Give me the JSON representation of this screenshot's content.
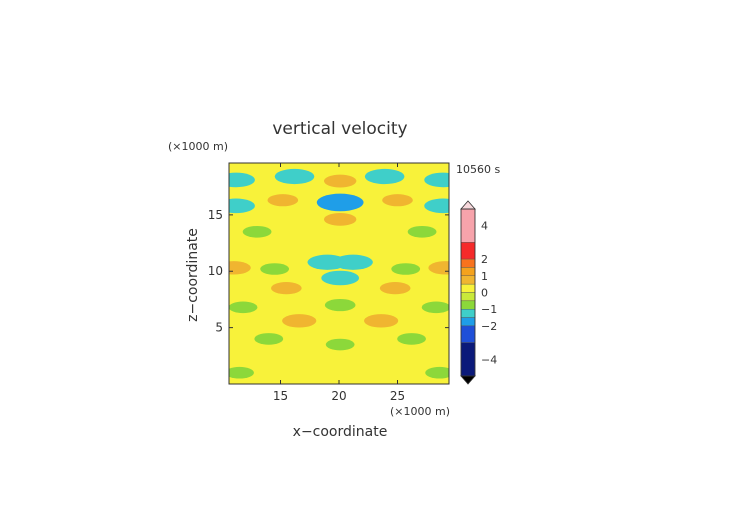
{
  "chart_data": {
    "type": "heatmap",
    "title": "vertical velocity",
    "time_label": "10560 s",
    "xlabel": "x−coordinate",
    "ylabel": "z−coordinate",
    "x_unit": "(×1000 m)",
    "y_unit": "(×1000 m)",
    "xlim": [
      10.6,
      29.4
    ],
    "ylim": [
      0,
      19.6
    ],
    "x_ticks": [
      15,
      20,
      25
    ],
    "y_ticks": [
      5,
      10,
      15
    ],
    "colorbar": {
      "ticks": [
        4,
        2,
        1,
        0,
        -1,
        -2,
        -4
      ],
      "tick_labels": [
        "4",
        "2",
        "1",
        "0",
        "−1",
        "−2",
        "−4"
      ],
      "levels": [
        {
          "from": 3,
          "to": 5,
          "color": "#f7a3ab"
        },
        {
          "from": 2,
          "to": 3,
          "color": "#f52a2a"
        },
        {
          "from": 1.5,
          "to": 2,
          "color": "#f8731e"
        },
        {
          "from": 1,
          "to": 1.5,
          "color": "#f4a21d"
        },
        {
          "from": 0.5,
          "to": 1,
          "color": "#f0b530"
        },
        {
          "from": 0,
          "to": 0.5,
          "color": "#f8f23a"
        },
        {
          "from": -0.5,
          "to": 0,
          "color": "#c9e93a"
        },
        {
          "from": -1,
          "to": -0.5,
          "color": "#8cd83a"
        },
        {
          "from": -1.5,
          "to": -1,
          "color": "#3fcfc9"
        },
        {
          "from": -2,
          "to": -1.5,
          "color": "#1f9ee8"
        },
        {
          "from": -3,
          "to": -2,
          "color": "#1f4fd8"
        },
        {
          "from": -5,
          "to": -3,
          "color": "#0b1a7a"
        }
      ],
      "over_color": "#f7d8dc",
      "under_color": "#000000"
    },
    "background_value": 0.2,
    "features": [
      {
        "x": 19.0,
        "z": 10.8,
        "value": -1.2
      },
      {
        "x": 21.2,
        "z": 10.8,
        "value": -1.2
      },
      {
        "x": 20.1,
        "z": 16.1,
        "value": -1.6
      },
      {
        "x": 16.2,
        "z": 18.4,
        "value": -1.2
      },
      {
        "x": 23.9,
        "z": 18.4,
        "value": -1.2
      },
      {
        "x": 11.2,
        "z": 18.1,
        "value": -1.1
      },
      {
        "x": 28.9,
        "z": 18.1,
        "value": -1.1
      },
      {
        "x": 11.2,
        "z": 15.8,
        "value": -1.1
      },
      {
        "x": 28.9,
        "z": 15.8,
        "value": -1.1
      },
      {
        "x": 20.1,
        "z": 9.4,
        "value": -1.1
      },
      {
        "x": 20.1,
        "z": 18.0,
        "value": 0.8
      },
      {
        "x": 20.1,
        "z": 14.6,
        "value": 0.8
      },
      {
        "x": 15.2,
        "z": 16.3,
        "value": 0.7
      },
      {
        "x": 25.0,
        "z": 16.3,
        "value": 0.7
      },
      {
        "x": 16.6,
        "z": 5.6,
        "value": 0.9
      },
      {
        "x": 23.6,
        "z": 5.6,
        "value": 0.9
      },
      {
        "x": 11.0,
        "z": 10.3,
        "value": 0.9
      },
      {
        "x": 29.1,
        "z": 10.3,
        "value": 0.9
      },
      {
        "x": 15.5,
        "z": 8.5,
        "value": 0.7
      },
      {
        "x": 24.8,
        "z": 8.5,
        "value": 0.7
      },
      {
        "x": 14.5,
        "z": 10.2,
        "value": -0.6
      },
      {
        "x": 25.7,
        "z": 10.2,
        "value": -0.6
      },
      {
        "x": 11.8,
        "z": 6.8,
        "value": -0.6
      },
      {
        "x": 28.3,
        "z": 6.8,
        "value": -0.6
      },
      {
        "x": 20.1,
        "z": 3.5,
        "value": -0.6
      },
      {
        "x": 13.0,
        "z": 13.5,
        "value": -0.6
      },
      {
        "x": 27.1,
        "z": 13.5,
        "value": -0.6
      },
      {
        "x": 20.1,
        "z": 7.0,
        "value": -0.7
      },
      {
        "x": 14.0,
        "z": 4.0,
        "value": -0.6
      },
      {
        "x": 26.2,
        "z": 4.0,
        "value": -0.6
      },
      {
        "x": 11.5,
        "z": 1.0,
        "value": -0.6
      },
      {
        "x": 28.6,
        "z": 1.0,
        "value": -0.6
      }
    ]
  }
}
